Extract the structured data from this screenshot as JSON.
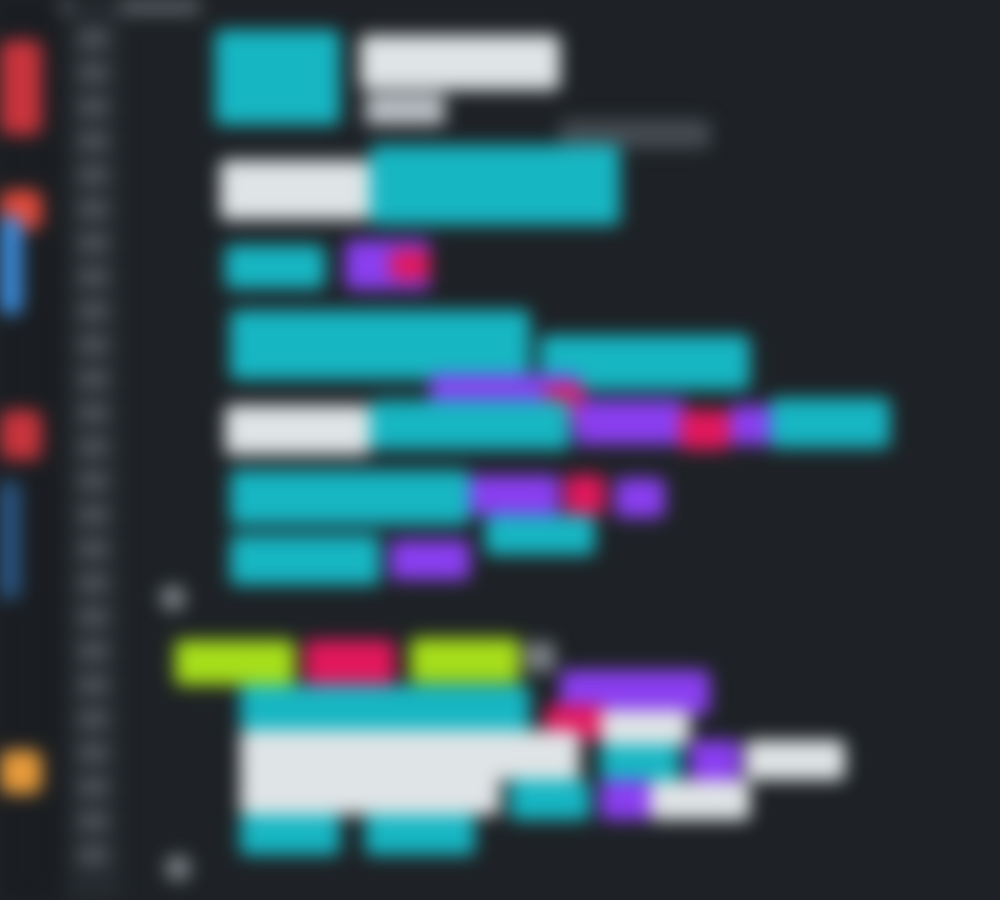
{
  "editor": {
    "theme_colors": {
      "background": "#1e2226",
      "gutter": "#262b30",
      "activity_bar": "#1a1d21",
      "cyan": "#17b6c3",
      "white": "#dfe4e6",
      "purple": "#8a3ff0",
      "magenta": "#e2185c",
      "green": "#a6de1b",
      "red": "#c8343c",
      "blue": "#3c8fe0",
      "orange": "#e69a3a",
      "gray": "#7c8287"
    },
    "activity_icons": [
      "explorer-icon",
      "search-icon",
      "source-control-icon",
      "debug-icon",
      "extensions-icon",
      "settings-icon"
    ]
  }
}
